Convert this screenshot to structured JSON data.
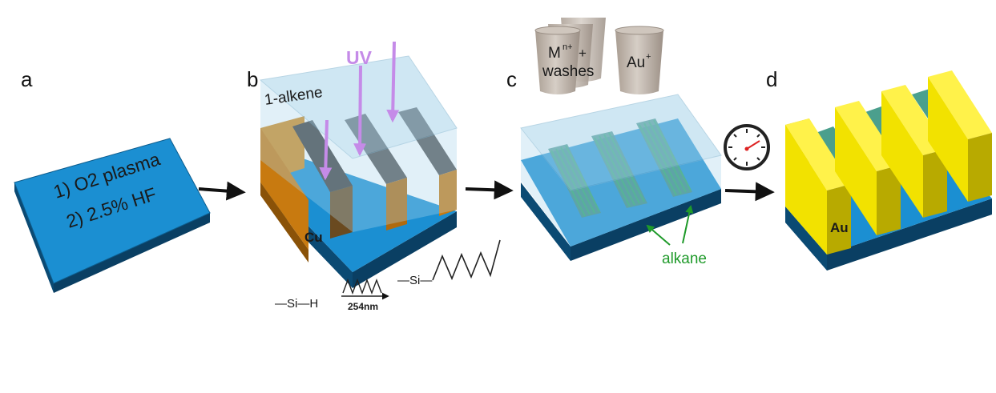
{
  "panels": [
    {
      "label": "a"
    },
    {
      "label": "b"
    },
    {
      "label": "c"
    },
    {
      "label": "d"
    }
  ],
  "panel_a": {
    "step1": "1) O2 plasma",
    "step2": "2) 2.5% HF"
  },
  "panel_b": {
    "uv_label": "UV",
    "alkene_label": "1-alkene",
    "cu_label": "Cu",
    "reaction": {
      "reactant": "—Si—H",
      "condition": "254nm",
      "product": "—Si—"
    }
  },
  "panel_c": {
    "beaker1_line1": "M",
    "beaker1_sup": "n+",
    "beaker1_plus": "+",
    "beaker1_line2": "washes",
    "beaker2_label": "Au",
    "beaker2_sup": "+",
    "alkane_label": "alkane"
  },
  "panel_d": {
    "au_label": "Au",
    "timer_icon": "clock-icon"
  },
  "colors": {
    "substrate_top": "#1b8fd2",
    "substrate_side": "#0b4a73",
    "copper": "#c87a10",
    "gold": "#f2e200",
    "uv_arrow": "#c58be8",
    "alkane": "#1f9a2a",
    "liquid": "#a9d4ea"
  }
}
